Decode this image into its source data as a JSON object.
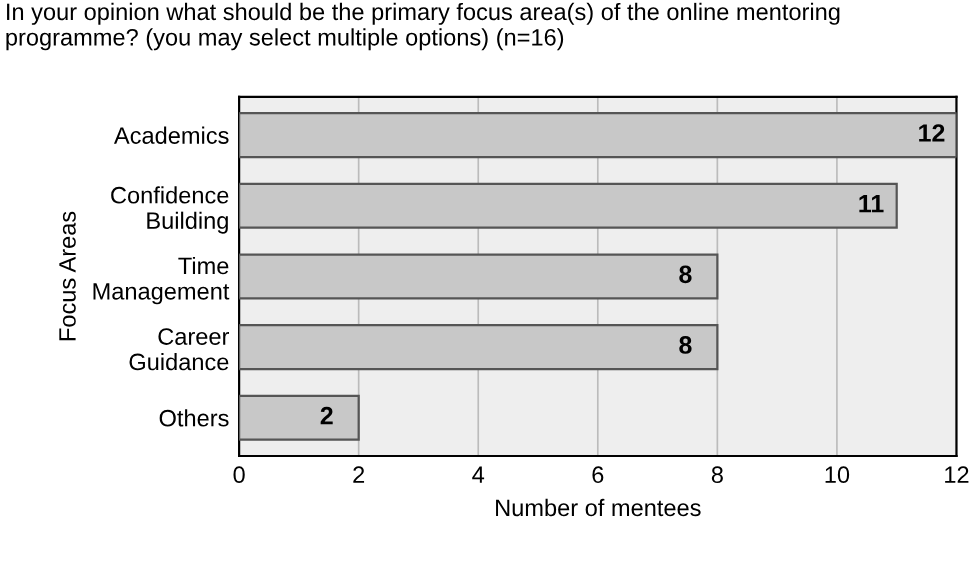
{
  "chart_data": {
    "type": "bar",
    "orientation": "horizontal",
    "title": "In your opinion what should be the primary focus area(s) of the online mentoring\nprogramme? (you may select multiple options) (n=16)",
    "xlabel": "Number of mentees",
    "ylabel": "Focus Areas",
    "categories": [
      "Academics",
      "Confidence\nBuilding",
      "Time\nManagement",
      "Career\nGuidance",
      "Others"
    ],
    "values": [
      12,
      11,
      8,
      8,
      2
    ],
    "color": "#c8c8c8",
    "xlim": [
      0,
      12
    ],
    "xticks": [
      0,
      2,
      4,
      6,
      8,
      10,
      12
    ],
    "grid": "x",
    "data_labels": true
  }
}
